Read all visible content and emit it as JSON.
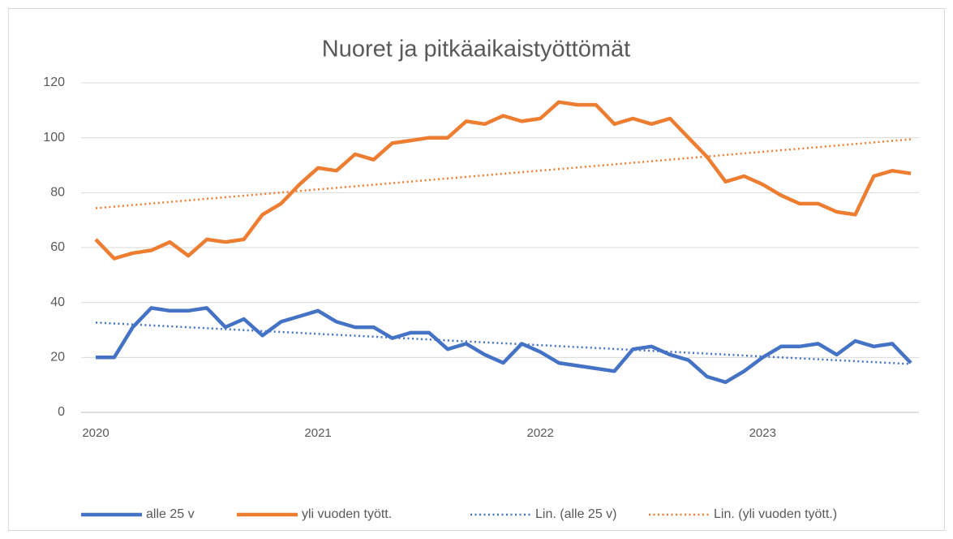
{
  "chart_data": {
    "type": "line",
    "title": "Nuoret ja pitkäaikaistyöttömät",
    "categories": [
      "2020",
      null,
      null,
      null,
      null,
      null,
      null,
      null,
      null,
      null,
      null,
      null,
      "2021",
      null,
      null,
      null,
      null,
      null,
      null,
      null,
      null,
      null,
      null,
      null,
      "2022",
      null,
      null,
      null,
      null,
      null,
      null,
      null,
      null,
      null,
      null,
      null,
      "2023",
      null,
      null,
      null,
      null,
      null,
      null,
      null,
      null
    ],
    "series": [
      {
        "name": "alle 25 v",
        "color": "#4472c4",
        "trendline": "Lin. (alle 25 v)",
        "values": [
          20,
          20,
          31,
          38,
          37,
          37,
          38,
          31,
          34,
          28,
          33,
          35,
          37,
          33,
          31,
          31,
          27,
          29,
          29,
          23,
          25,
          21,
          18,
          25,
          22,
          18,
          17,
          16,
          15,
          23,
          24,
          21,
          19,
          13,
          11,
          15,
          20,
          24,
          24,
          25,
          21,
          26,
          24,
          25,
          18
        ]
      },
      {
        "name": "yli vuoden tyött.",
        "color": "#ed7d31",
        "trendline": "Lin. (yli vuoden tyött.)",
        "values": [
          63,
          56,
          58,
          59,
          62,
          57,
          63,
          62,
          63,
          72,
          76,
          83,
          89,
          88,
          94,
          92,
          98,
          99,
          100,
          100,
          106,
          105,
          108,
          106,
          107,
          113,
          112,
          112,
          105,
          107,
          105,
          107,
          100,
          93,
          84,
          86,
          83,
          79,
          76,
          76,
          73,
          72,
          86,
          88,
          87
        ]
      }
    ],
    "ylim": [
      0,
      120
    ],
    "yticks": [
      0,
      20,
      40,
      60,
      80,
      100,
      120
    ],
    "grid": true,
    "legend": "bottom"
  }
}
